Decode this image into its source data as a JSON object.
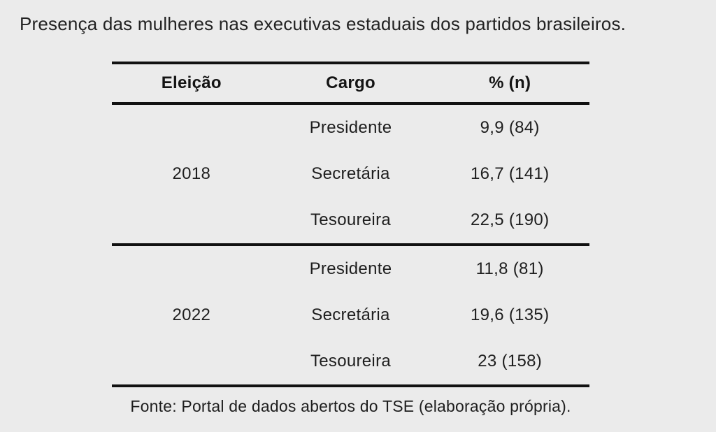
{
  "title": "Presença das mulheres nas executivas estaduais dos partidos brasileiros.",
  "table": {
    "headers": [
      "Eleição",
      "Cargo",
      "% (n)"
    ],
    "groups": [
      {
        "year": "2018",
        "rows": [
          {
            "cargo": "Presidente",
            "value": "9,9 (84)"
          },
          {
            "cargo": "Secretária",
            "value": "16,7 (141)"
          },
          {
            "cargo": "Tesoureira",
            "value": "22,5 (190)"
          }
        ]
      },
      {
        "year": "2022",
        "rows": [
          {
            "cargo": "Presidente",
            "value": "11,8 (81)"
          },
          {
            "cargo": "Secretária",
            "value": "19,6 (135)"
          },
          {
            "cargo": "Tesoureira",
            "value": "23 (158)"
          }
        ]
      }
    ],
    "source": "Fonte: Portal de dados abertos do TSE (elaboração própria)."
  },
  "chart_data": {
    "type": "table",
    "title": "Presença das mulheres nas executivas estaduais dos partidos brasileiros.",
    "columns": [
      "Eleição",
      "Cargo",
      "% (n)"
    ],
    "rows": [
      [
        "2018",
        "Presidente",
        "9,9 (84)"
      ],
      [
        "2018",
        "Secretária",
        "16,7 (141)"
      ],
      [
        "2018",
        "Tesoureira",
        "22,5 (190)"
      ],
      [
        "2022",
        "Presidente",
        "11,8 (81)"
      ],
      [
        "2022",
        "Secretária",
        "19,6 (135)"
      ],
      [
        "2022",
        "Tesoureira",
        "23 (158)"
      ]
    ],
    "values": [
      {
        "eleicao": 2018,
        "cargo": "Presidente",
        "pct": 9.9,
        "n": 84
      },
      {
        "eleicao": 2018,
        "cargo": "Secretária",
        "pct": 16.7,
        "n": 141
      },
      {
        "eleicao": 2018,
        "cargo": "Tesoureira",
        "pct": 22.5,
        "n": 190
      },
      {
        "eleicao": 2022,
        "cargo": "Presidente",
        "pct": 11.8,
        "n": 81
      },
      {
        "eleicao": 2022,
        "cargo": "Secretária",
        "pct": 19.6,
        "n": 135
      },
      {
        "eleicao": 2022,
        "cargo": "Tesoureira",
        "pct": 23,
        "n": 158
      }
    ],
    "source": "Fonte: Portal de dados abertos do TSE (elaboração própria)."
  },
  "colors": {
    "background": "#ebebeb",
    "text": "#1e1e1e",
    "rule": "#111111"
  }
}
